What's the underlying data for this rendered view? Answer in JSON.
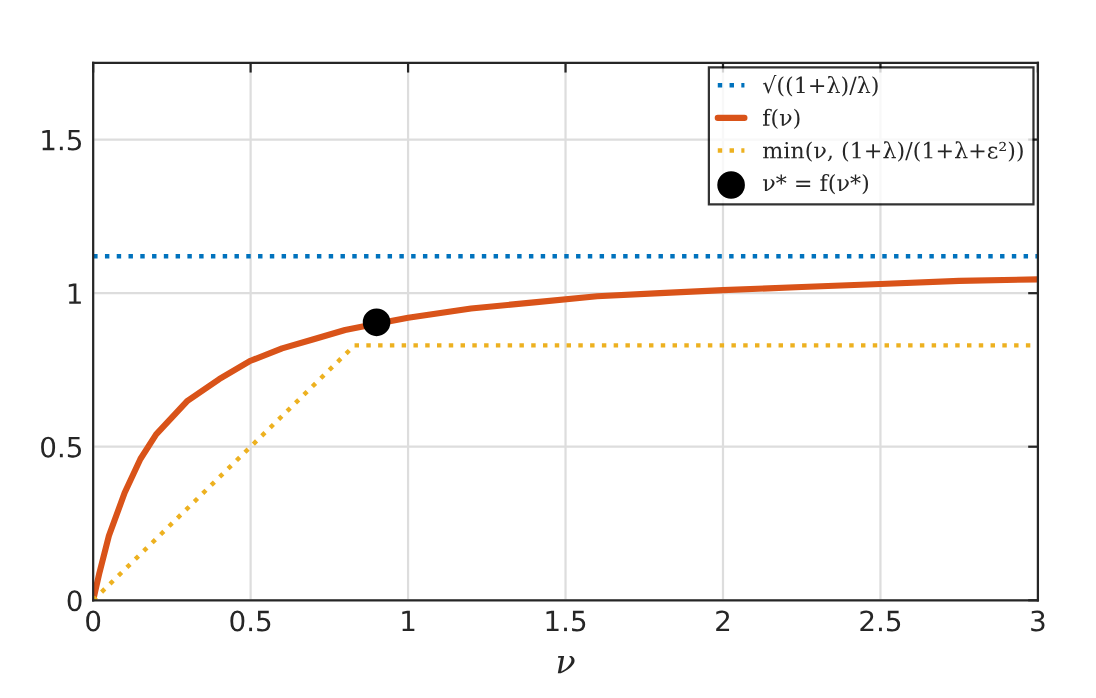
{
  "chart_data": {
    "type": "line",
    "xlabel": "ν",
    "xlim": [
      0,
      3
    ],
    "ylim": [
      0,
      1.75
    ],
    "xticks": [
      0,
      0.5,
      1,
      1.5,
      2,
      2.5,
      3
    ],
    "yticks": [
      0,
      0.5,
      1,
      1.5
    ],
    "grid": true,
    "legend": "top right",
    "series": [
      {
        "name": "√((1+λ)/λ)",
        "color": "#0072bd",
        "line_style": "dotted",
        "x": [
          0,
          3
        ],
        "values": [
          1.12,
          1.12
        ]
      },
      {
        "name": "f(ν)",
        "color": "#d95319",
        "line_style": "solid",
        "x": [
          0,
          0.02,
          0.05,
          0.1,
          0.15,
          0.2,
          0.3,
          0.4,
          0.5,
          0.6,
          0.7,
          0.8,
          0.9,
          1.0,
          1.2,
          1.4,
          1.6,
          1.8,
          2.0,
          2.25,
          2.5,
          2.75,
          3
        ],
        "values": [
          0,
          0.09,
          0.21,
          0.35,
          0.46,
          0.54,
          0.65,
          0.72,
          0.78,
          0.82,
          0.85,
          0.88,
          0.9,
          0.92,
          0.95,
          0.97,
          0.99,
          1.0,
          1.01,
          1.02,
          1.03,
          1.04,
          1.045
        ]
      },
      {
        "name": "min(ν, (1+λ)/(1+λ+ε²))",
        "color": "#edb120",
        "line_style": "dotted",
        "x": [
          0,
          0.83,
          3
        ],
        "values": [
          0,
          0.83,
          0.83
        ]
      },
      {
        "name": "ν* = f(ν*)",
        "color": "#000000",
        "type": "scatter",
        "marker": "circle",
        "x": [
          0.9
        ],
        "values": [
          0.905
        ]
      }
    ]
  }
}
